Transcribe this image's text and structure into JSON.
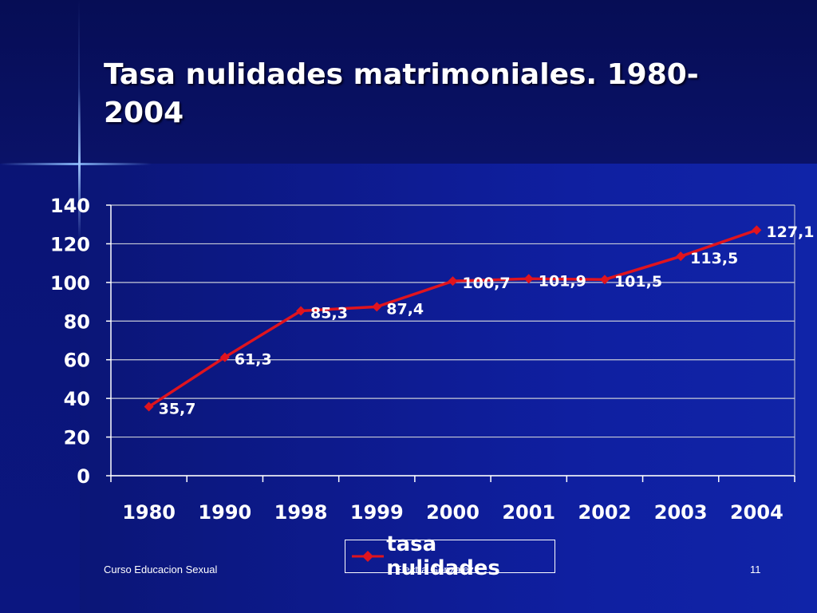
{
  "slide": {
    "title": "Tasa nulidades matrimoniales. 1980-2004",
    "footer_left": "Curso Educacion Sexual",
    "footer_center": "Electra Gonzalez",
    "page_number": "11"
  },
  "colors": {
    "line": "#e0141e",
    "text": "#ffffff",
    "grid": "#c8ccd8"
  },
  "chart_data": {
    "type": "line",
    "title": "",
    "xlabel": "",
    "ylabel": "",
    "categories": [
      "1980",
      "1990",
      "1998",
      "1999",
      "2000",
      "2001",
      "2002",
      "2003",
      "2004"
    ],
    "series": [
      {
        "name": "tasa nulidades",
        "values": [
          35.7,
          61.3,
          85.3,
          87.4,
          100.7,
          101.9,
          101.5,
          113.5,
          127.1
        ],
        "labels": [
          "35,7",
          "61,3",
          "85,3",
          "87,4",
          "100,7",
          "101,9",
          "101,5",
          "113,5",
          "127,1"
        ]
      }
    ],
    "ylim": [
      0,
      140
    ],
    "yticks": [
      0,
      20,
      40,
      60,
      80,
      100,
      120,
      140
    ],
    "grid": true,
    "legend_position": "bottom",
    "marker": "diamond"
  }
}
